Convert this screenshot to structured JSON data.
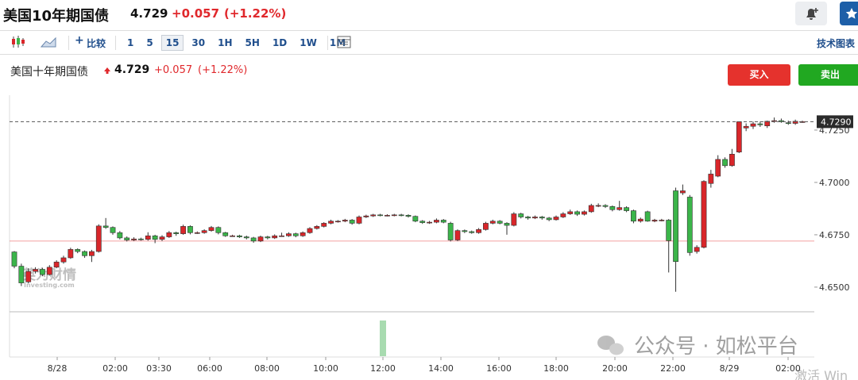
{
  "header": {
    "title": "美国10年期国债",
    "price": "4.729",
    "change": "+0.057",
    "change_pct": "(+1.22%)"
  },
  "toolbar": {
    "compare": "比较",
    "intervals": [
      "1",
      "5",
      "15",
      "30",
      "1H",
      "5H",
      "1D",
      "1W",
      "1M"
    ],
    "selected": "15",
    "technical": "技术图表"
  },
  "chart_header": {
    "title": "美国十年期国债",
    "price": "4.729",
    "change": "+0.057",
    "change_pct": "(+1.22%)"
  },
  "buttons": {
    "buy": "买入",
    "sell": "卖出"
  },
  "watermarks": {
    "logo": "英为财情",
    "site": "Investing.com",
    "wechat": "公众号 · 如松平台",
    "windows": "激活 Win"
  },
  "chart_data": {
    "type": "candlestick",
    "up_color": "#d9262a",
    "down_color": "#3bb54a",
    "ylim": [
      4.6386,
      4.7409
    ],
    "yticks": [
      {
        "value": 4.65,
        "label": "4.6500"
      },
      {
        "value": 4.675,
        "label": "4.6750"
      },
      {
        "value": 4.7,
        "label": "4.7000"
      },
      {
        "value": 4.725,
        "label": "4.7250"
      }
    ],
    "xticks": [
      "8/28",
      "02:00",
      "03:30",
      "06:00",
      "08:00",
      "10:00",
      "12:00",
      "14:00",
      "16:00",
      "18:00",
      "20:00",
      "22:00",
      "8/29",
      "02:00"
    ],
    "last_price": {
      "value": 4.729,
      "label": "4.7290"
    },
    "prev_close": 4.672,
    "prev_close_color": "#f08080",
    "candles": [
      [
        4.6668,
        4.6672,
        4.659,
        4.66
      ],
      [
        4.66,
        4.6612,
        4.6505,
        4.652
      ],
      [
        4.6525,
        4.659,
        4.6518,
        4.6575
      ],
      [
        4.6575,
        4.6595,
        4.6565,
        4.6585
      ],
      [
        4.6585,
        4.6592,
        4.6552,
        4.656
      ],
      [
        4.656,
        4.6605,
        4.6555,
        4.6595
      ],
      [
        4.6595,
        4.6628,
        4.659,
        4.662
      ],
      [
        4.662,
        4.665,
        4.6612,
        4.664
      ],
      [
        4.664,
        4.6688,
        4.6635,
        4.668
      ],
      [
        4.668,
        4.6685,
        4.6662,
        4.667
      ],
      [
        4.667,
        4.6675,
        4.664,
        4.665
      ],
      [
        4.665,
        4.6678,
        4.662,
        4.667
      ],
      [
        4.667,
        4.68,
        4.6665,
        4.6792
      ],
      [
        4.6792,
        4.683,
        4.6778,
        4.6785
      ],
      [
        4.6785,
        4.679,
        4.675,
        4.676
      ],
      [
        4.676,
        4.6768,
        4.6728,
        4.6735
      ],
      [
        4.6735,
        4.6742,
        4.6718,
        4.6725
      ],
      [
        4.6725,
        4.6738,
        4.672,
        4.673
      ],
      [
        4.673,
        4.6736,
        4.6722,
        4.6728
      ],
      [
        4.6728,
        4.6762,
        4.6722,
        4.6745
      ],
      [
        4.6745,
        4.675,
        4.671,
        4.6728
      ],
      [
        4.6728,
        4.6748,
        4.672,
        4.674
      ],
      [
        4.674,
        4.6768,
        4.6735,
        4.676
      ],
      [
        4.676,
        4.6765,
        4.6745,
        4.6755
      ],
      [
        4.6755,
        4.6798,
        4.675,
        4.679
      ],
      [
        4.679,
        4.6795,
        4.6752,
        4.676
      ],
      [
        4.676,
        4.6766,
        4.6754,
        4.676
      ],
      [
        4.676,
        4.6776,
        4.6755,
        4.677
      ],
      [
        4.677,
        4.6792,
        4.6765,
        4.6785
      ],
      [
        4.6785,
        4.679,
        4.6752,
        4.676
      ],
      [
        4.676,
        4.6764,
        4.674,
        4.6745
      ],
      [
        4.6745,
        4.675,
        4.674,
        4.6745
      ],
      [
        4.6745,
        4.675,
        4.6735,
        4.674
      ],
      [
        4.674,
        4.6746,
        4.6728,
        4.6735
      ],
      [
        4.6735,
        4.674,
        4.6712,
        4.672
      ],
      [
        4.672,
        4.6746,
        4.6715,
        4.674
      ],
      [
        4.674,
        4.6745,
        4.6728,
        4.6735
      ],
      [
        4.6735,
        4.6752,
        4.673,
        4.6745
      ],
      [
        4.6745,
        4.676,
        4.674,
        4.6745
      ],
      [
        4.6745,
        4.6762,
        4.674,
        4.6755
      ],
      [
        4.6755,
        4.676,
        4.6738,
        4.6745
      ],
      [
        4.6745,
        4.6766,
        4.674,
        4.676
      ],
      [
        4.676,
        4.6786,
        4.6755,
        4.678
      ],
      [
        4.678,
        4.6796,
        4.6775,
        4.679
      ],
      [
        4.679,
        4.681,
        4.6785,
        4.6805
      ],
      [
        4.6805,
        4.6822,
        4.68,
        4.6815
      ],
      [
        4.6815,
        4.682,
        4.6808,
        4.6815
      ],
      [
        4.6815,
        4.6826,
        4.681,
        4.682
      ],
      [
        4.682,
        4.6825,
        4.6798,
        4.6805
      ],
      [
        4.6805,
        4.6842,
        4.68,
        4.6835
      ],
      [
        4.6835,
        4.6846,
        4.683,
        4.684
      ],
      [
        4.684,
        4.685,
        4.6835,
        4.6845
      ],
      [
        4.6845,
        4.685,
        4.6838,
        4.6842
      ],
      [
        4.6842,
        4.6848,
        4.6838,
        4.6843
      ],
      [
        4.6843,
        4.685,
        4.6838,
        4.6845
      ],
      [
        4.6845,
        4.685,
        4.6838,
        4.6843
      ],
      [
        4.6843,
        4.6848,
        4.6832,
        4.6838
      ],
      [
        4.6838,
        4.6842,
        4.681,
        4.6815
      ],
      [
        4.6815,
        4.682,
        4.6802,
        4.6808
      ],
      [
        4.6808,
        4.6816,
        4.6802,
        4.681
      ],
      [
        4.681,
        4.6828,
        4.6805,
        4.682
      ],
      [
        4.682,
        4.6825,
        4.6805,
        4.681
      ],
      [
        4.6805,
        4.6812,
        4.6718,
        4.6725
      ],
      [
        4.6725,
        4.6776,
        4.672,
        4.677
      ],
      [
        4.677,
        4.6775,
        4.6758,
        4.6765
      ],
      [
        4.6765,
        4.677,
        4.6755,
        4.676
      ],
      [
        4.676,
        4.6782,
        4.6755,
        4.6775
      ],
      [
        4.6775,
        4.6812,
        4.677,
        4.6805
      ],
      [
        4.6805,
        4.6822,
        4.68,
        4.6815
      ],
      [
        4.6815,
        4.682,
        4.68,
        4.6805
      ],
      [
        4.6805,
        4.681,
        4.675,
        4.6795
      ],
      [
        4.6795,
        4.6858,
        4.679,
        4.685
      ],
      [
        4.685,
        4.6855,
        4.6828,
        4.6835
      ],
      [
        4.6835,
        4.684,
        4.6822,
        4.683
      ],
      [
        4.683,
        4.6842,
        4.6825,
        4.6835
      ],
      [
        4.6835,
        4.684,
        4.6822,
        4.683
      ],
      [
        4.683,
        4.6835,
        4.6815,
        4.6822
      ],
      [
        4.6822,
        4.6842,
        4.6818,
        4.6835
      ],
      [
        4.6835,
        4.6858,
        4.683,
        4.685
      ],
      [
        4.685,
        4.687,
        4.6845,
        4.686
      ],
      [
        4.686,
        4.6866,
        4.684,
        4.6848
      ],
      [
        4.6848,
        4.6866,
        4.6842,
        4.686
      ],
      [
        4.686,
        4.6898,
        4.6855,
        4.689
      ],
      [
        4.689,
        4.69,
        4.6882,
        4.689
      ],
      [
        4.689,
        4.6896,
        4.6878,
        4.6885
      ],
      [
        4.6885,
        4.689,
        4.6862,
        4.687
      ],
      [
        4.687,
        4.6912,
        4.6865,
        4.688
      ],
      [
        4.688,
        4.6886,
        4.6858,
        4.6865
      ],
      [
        4.6865,
        4.687,
        4.6805,
        4.6815
      ],
      [
        4.6815,
        4.6832,
        4.6808,
        4.6825
      ],
      [
        4.686,
        4.6865,
        4.6812,
        4.6815
      ],
      [
        4.6815,
        4.6826,
        4.681,
        4.682
      ],
      [
        4.682,
        4.6826,
        4.6814,
        4.682
      ],
      [
        4.682,
        4.6825,
        4.657,
        4.6722
      ],
      [
        4.696,
        4.6975,
        4.6478,
        4.6622
      ],
      [
        4.695,
        4.699,
        4.694,
        4.696
      ],
      [
        4.693,
        4.694,
        4.665,
        4.6665
      ],
      [
        4.667,
        4.67,
        4.666,
        4.669
      ],
      [
        4.669,
        4.701,
        4.6685,
        4.7005
      ],
      [
        4.6995,
        4.706,
        4.6975,
        4.704
      ],
      [
        4.703,
        4.713,
        4.7025,
        4.711
      ],
      [
        4.711,
        4.712,
        4.707,
        4.708
      ],
      [
        4.708,
        4.716,
        4.7075,
        4.7135
      ],
      [
        4.7145,
        4.729,
        4.714,
        4.729
      ],
      [
        4.726,
        4.7282,
        4.7245,
        4.7268
      ],
      [
        4.7268,
        4.729,
        4.7255,
        4.728
      ],
      [
        4.728,
        4.729,
        4.7265,
        4.7275
      ],
      [
        4.727,
        4.7295,
        4.726,
        4.7292
      ],
      [
        4.7292,
        4.731,
        4.7285,
        4.7295
      ],
      [
        4.7295,
        4.7305,
        4.7285,
        4.729
      ],
      [
        4.7285,
        4.7295,
        4.7275,
        4.7282
      ],
      [
        4.7282,
        4.73,
        4.7275,
        4.7292
      ],
      [
        4.729,
        4.7295,
        4.7285,
        4.729
      ]
    ]
  }
}
